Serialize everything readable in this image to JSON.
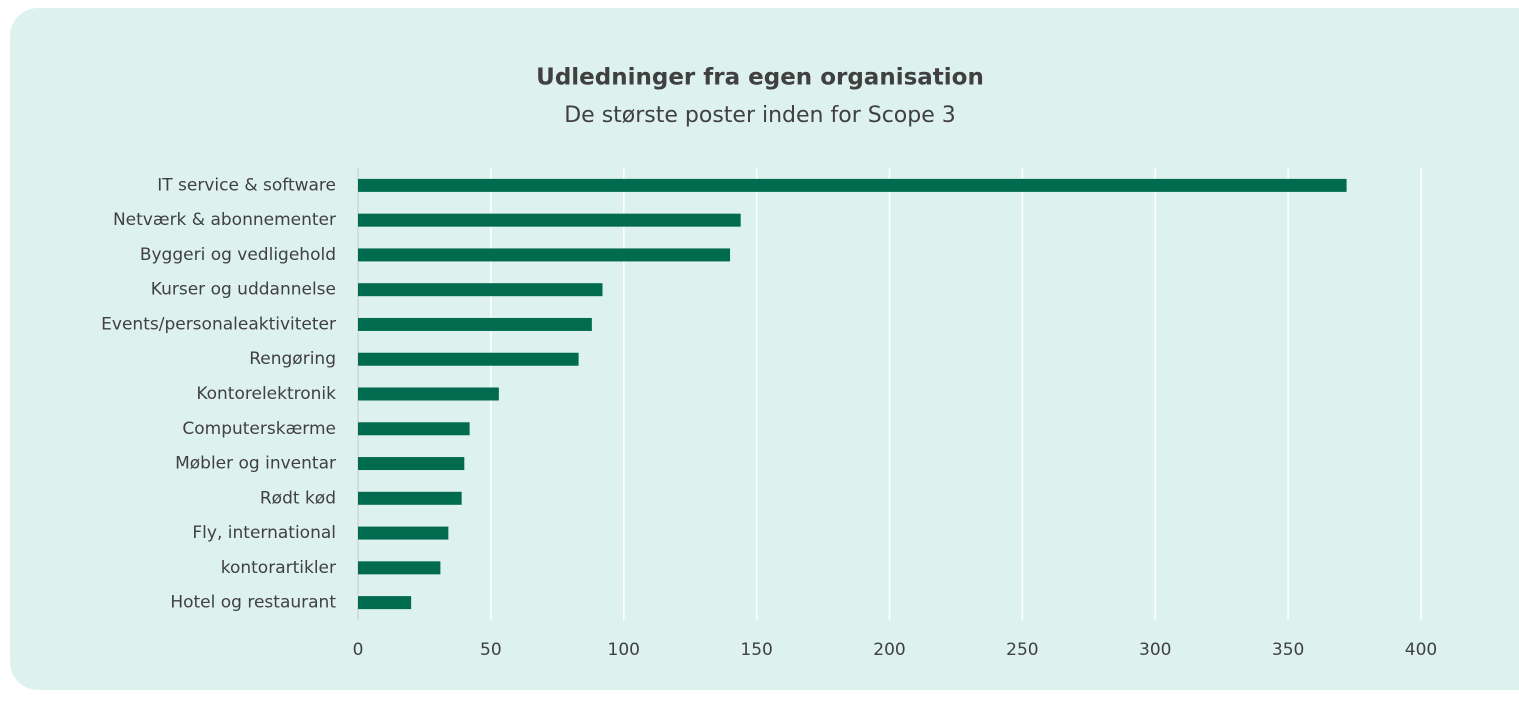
{
  "chart_data": {
    "type": "bar",
    "orientation": "horizontal",
    "title": "Udledninger fra egen organisation",
    "subtitle": "De største poster inden for Scope 3",
    "categories": [
      "IT service & software",
      "Netværk & abonnementer",
      "Byggeri og vedligehold",
      "Kurser og uddannelse",
      "Events/personaleaktiviteter",
      "Rengøring",
      "Kontorelektronik",
      "Computerskærme",
      "Møbler og inventar",
      "Rødt kød",
      "Fly, international",
      "kontorartikler",
      "Hotel og restaurant"
    ],
    "values": [
      372,
      144,
      140,
      92,
      88,
      83,
      53,
      42,
      40,
      39,
      34,
      31,
      20
    ],
    "color": "#006b4f",
    "xlim": [
      0,
      400
    ],
    "xticks": [
      0,
      50,
      100,
      150,
      200,
      250,
      300,
      350,
      400
    ],
    "grid": true
  }
}
